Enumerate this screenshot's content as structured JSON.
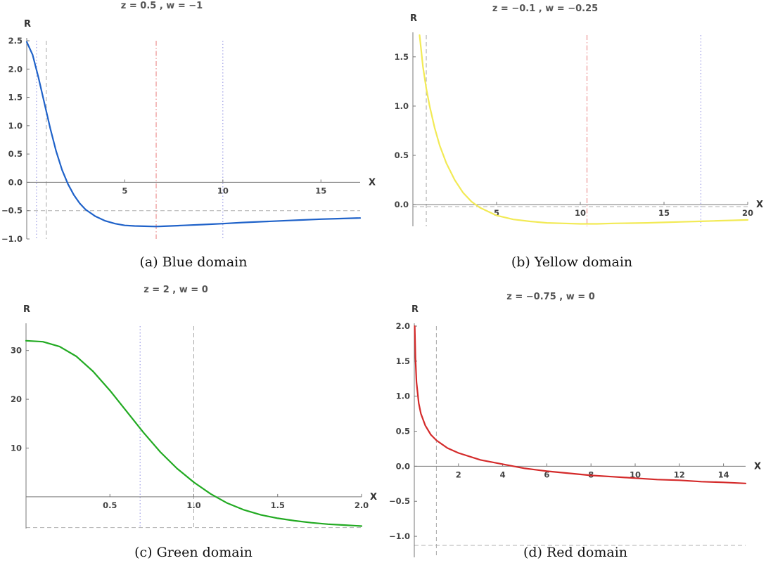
{
  "chart_data": [
    {
      "id": "a",
      "type": "line",
      "title": "z = 0.5 , w = −1",
      "xlabel": "X",
      "ylabel": "R",
      "caption": "(a) Blue domain",
      "xlim": [
        0,
        17
      ],
      "ylim": [
        -1.0,
        2.5
      ],
      "xaxis_at": 0,
      "yaxis_at": 0,
      "xticks": [
        {
          "v": 5,
          "label": "5"
        },
        {
          "v": 10,
          "label": "10"
        },
        {
          "v": 15,
          "label": "15"
        }
      ],
      "yticks": [
        {
          "v": -1.0,
          "label": "−1.0"
        },
        {
          "v": -0.5,
          "label": "−0.5"
        },
        {
          "v": 0.0,
          "label": "0.0"
        },
        {
          "v": 0.5,
          "label": "0.5"
        },
        {
          "v": 1.0,
          "label": "1.0"
        },
        {
          "v": 1.5,
          "label": "1.5"
        },
        {
          "v": 2.0,
          "label": "2.0"
        },
        {
          "v": 2.5,
          "label": "2.5"
        }
      ],
      "series": [
        {
          "color": "#1f62c9",
          "x": [
            0,
            0.3,
            0.6,
            0.9,
            1.2,
            1.5,
            1.8,
            2.1,
            2.4,
            2.7,
            3.0,
            3.5,
            4.0,
            4.5,
            5.0,
            5.5,
            6.0,
            6.6,
            7.0,
            8.0,
            9.0,
            10.0,
            11.0,
            12.0,
            13.0,
            14.0,
            15.0,
            16.0,
            17.0
          ],
          "y": [
            2.48,
            2.25,
            1.85,
            1.4,
            0.95,
            0.55,
            0.22,
            -0.03,
            -0.22,
            -0.37,
            -0.48,
            -0.6,
            -0.68,
            -0.73,
            -0.76,
            -0.77,
            -0.775,
            -0.78,
            -0.775,
            -0.76,
            -0.745,
            -0.73,
            -0.71,
            -0.695,
            -0.68,
            -0.665,
            -0.65,
            -0.64,
            -0.63
          ]
        }
      ],
      "vlines": [
        {
          "x": 0.5,
          "style": "dotted",
          "color": "#8a8ae0"
        },
        {
          "x": 1.0,
          "style": "dashed",
          "color": "#a8a8a8"
        },
        {
          "x": 6.6,
          "style": "dashdot",
          "color": "#e87a7a"
        },
        {
          "x": 10.0,
          "style": "dotted",
          "color": "#8a8ae0"
        }
      ],
      "hlines": [
        {
          "y": -0.5,
          "style": "dashed",
          "color": "#b0b0b0"
        }
      ]
    },
    {
      "id": "b",
      "type": "line",
      "title": "z = −0.1 , w = −0.25",
      "xlabel": "X",
      "ylabel": "R",
      "caption": "(b) Yellow domain",
      "xlim": [
        0,
        20
      ],
      "ylim": [
        -0.22,
        1.72
      ],
      "xaxis_at": 0,
      "yaxis_at": 0,
      "xticks": [
        {
          "v": 5,
          "label": "5"
        },
        {
          "v": 10,
          "label": "10"
        },
        {
          "v": 15,
          "label": "15"
        },
        {
          "v": 20,
          "label": "20"
        }
      ],
      "yticks": [
        {
          "v": 0.0,
          "label": "0.0"
        },
        {
          "v": 0.5,
          "label": "0.5"
        },
        {
          "v": 1.0,
          "label": "1.0"
        },
        {
          "v": 1.5,
          "label": "1.5"
        }
      ],
      "series": [
        {
          "color": "#f2ea55",
          "x": [
            0.4,
            0.6,
            0.8,
            1.0,
            1.3,
            1.6,
            2.0,
            2.5,
            3.0,
            3.5,
            4.0,
            5.0,
            6.0,
            7.0,
            8.0,
            9.0,
            10.0,
            10.4,
            11.0,
            12.0,
            13.0,
            14.0,
            15.0,
            16.0,
            17.0,
            18.0,
            19.0,
            20.0
          ],
          "y": [
            1.72,
            1.4,
            1.18,
            1.0,
            0.78,
            0.6,
            0.42,
            0.25,
            0.12,
            0.03,
            -0.03,
            -0.11,
            -0.15,
            -0.17,
            -0.185,
            -0.19,
            -0.195,
            -0.195,
            -0.195,
            -0.19,
            -0.188,
            -0.185,
            -0.18,
            -0.175,
            -0.17,
            -0.165,
            -0.16,
            -0.155
          ]
        }
      ],
      "vlines": [
        {
          "x": 0.8,
          "style": "dashed",
          "color": "#a8a8a8"
        },
        {
          "x": 10.4,
          "style": "dashdot",
          "color": "#e87a7a"
        },
        {
          "x": 17.2,
          "style": "dotted",
          "color": "#8a8ae0"
        }
      ],
      "hlines": [
        {
          "y": -0.02,
          "style": "dashed",
          "color": "#b0b0b0"
        }
      ]
    },
    {
      "id": "c",
      "type": "line",
      "title": "z = 2 , w = 0",
      "xlabel": "X",
      "ylabel": "R",
      "caption": "(c) Green domain",
      "xlim": [
        0,
        2.0
      ],
      "ylim": [
        -6.5,
        35
      ],
      "xaxis_at": 0,
      "yaxis_at": 0,
      "xticks": [
        {
          "v": 0.5,
          "label": "0.5"
        },
        {
          "v": 1.0,
          "label": "1.0"
        },
        {
          "v": 1.5,
          "label": "1.5"
        },
        {
          "v": 2.0,
          "label": "2.0"
        }
      ],
      "yticks": [
        {
          "v": 10,
          "label": "10"
        },
        {
          "v": 20,
          "label": "20"
        },
        {
          "v": 30,
          "label": "30"
        }
      ],
      "series": [
        {
          "color": "#22aa22",
          "x": [
            0,
            0.1,
            0.2,
            0.3,
            0.4,
            0.5,
            0.6,
            0.7,
            0.8,
            0.9,
            1.0,
            1.1,
            1.2,
            1.3,
            1.4,
            1.5,
            1.6,
            1.7,
            1.8,
            1.9,
            2.0
          ],
          "y": [
            32.0,
            31.8,
            30.8,
            28.8,
            25.7,
            21.8,
            17.5,
            13.2,
            9.2,
            5.8,
            3.0,
            0.6,
            -1.3,
            -2.7,
            -3.7,
            -4.4,
            -4.9,
            -5.3,
            -5.6,
            -5.8,
            -6.0
          ]
        }
      ],
      "vlines": [
        {
          "x": 0.68,
          "style": "dotted",
          "color": "#8a8ae0"
        },
        {
          "x": 1.0,
          "style": "dashed",
          "color": "#a8a8a8"
        }
      ],
      "hlines": [
        {
          "y": -6.3,
          "style": "dashed",
          "color": "#b0b0b0"
        }
      ]
    },
    {
      "id": "d",
      "type": "line",
      "title": "z = −0.75 , w = 0",
      "xlabel": "X",
      "ylabel": "R",
      "caption": "(d) Red domain",
      "xlim": [
        0,
        15
      ],
      "ylim": [
        -1.3,
        2.0
      ],
      "xaxis_at": 0,
      "yaxis_at": 0,
      "xticks": [
        {
          "v": 2,
          "label": "2"
        },
        {
          "v": 4,
          "label": "4"
        },
        {
          "v": 6,
          "label": "6"
        },
        {
          "v": 8,
          "label": "8"
        },
        {
          "v": 10,
          "label": "10"
        },
        {
          "v": 12,
          "label": "12"
        },
        {
          "v": 14,
          "label": "14"
        }
      ],
      "yticks": [
        {
          "v": -1.0,
          "label": "−1.0"
        },
        {
          "v": -0.5,
          "label": "−0.5"
        },
        {
          "v": 0.0,
          "label": "0.0"
        },
        {
          "v": 0.5,
          "label": "0.5"
        },
        {
          "v": 1.0,
          "label": "1.0"
        },
        {
          "v": 1.5,
          "label": "1.5"
        },
        {
          "v": 2.0,
          "label": "2.0"
        }
      ],
      "series": [
        {
          "color": "#d42a2a",
          "x": [
            0.02,
            0.05,
            0.1,
            0.2,
            0.3,
            0.5,
            0.75,
            1.0,
            1.5,
            2.0,
            3.0,
            4.0,
            4.5,
            5.0,
            6.0,
            7.0,
            8.0,
            9.0,
            10.0,
            11.0,
            12.0,
            13.0,
            14.0,
            15.0
          ],
          "y": [
            2.0,
            1.55,
            1.2,
            0.9,
            0.75,
            0.58,
            0.45,
            0.37,
            0.26,
            0.19,
            0.09,
            0.03,
            0.0,
            -0.03,
            -0.07,
            -0.1,
            -0.13,
            -0.15,
            -0.17,
            -0.19,
            -0.2,
            -0.22,
            -0.23,
            -0.245
          ]
        }
      ],
      "vlines": [
        {
          "x": 1.0,
          "style": "dashed",
          "color": "#a8a8a8"
        }
      ],
      "hlines": [
        {
          "y": -1.13,
          "style": "dashed",
          "color": "#b0b0b0"
        }
      ]
    }
  ]
}
